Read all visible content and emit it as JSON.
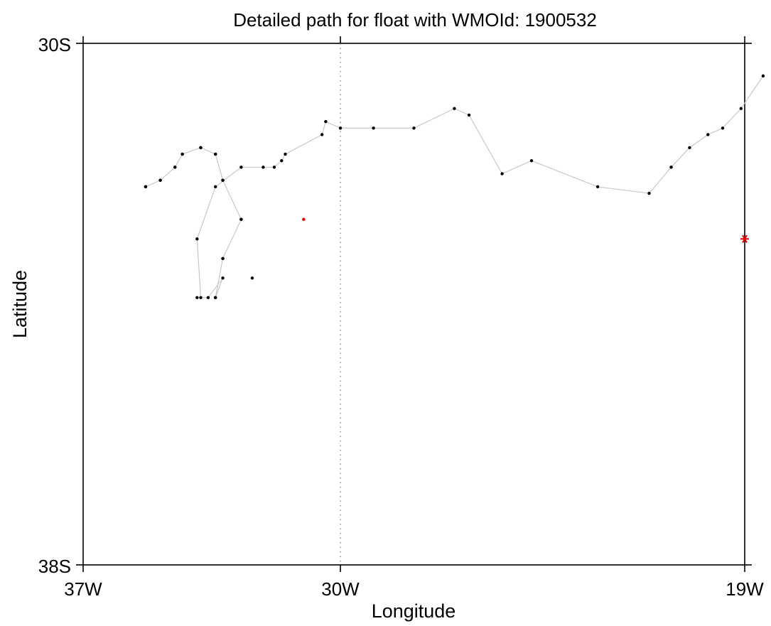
{
  "chart_data": {
    "type": "scatter",
    "title": "Detailed path for float with WMOId: 1900532",
    "xlabel": "Longitude",
    "ylabel": "Latitude",
    "xlim": [
      -37,
      -19
    ],
    "ylim": [
      -38,
      -30
    ],
    "x_tick_labels": [
      "37W",
      "30W",
      "19W"
    ],
    "y_tick_labels": [
      "30S",
      "38S"
    ],
    "reference_line": {
      "longitude": -30,
      "style": "dotted"
    },
    "grid": false,
    "colors": {
      "track": "#c8c8c8",
      "point": "#000000",
      "highlight": "#e00000",
      "frame": "#000000"
    },
    "track": {
      "name": "",
      "x": [
        -35.3,
        -34.9,
        -34.5,
        -34.3,
        -33.8,
        -33.4,
        -33.2,
        -32.7,
        -33.2,
        -33.4,
        -33.2,
        -33.6,
        -33.8,
        -33.9,
        -33.4,
        -32.7,
        -32.1,
        -31.8,
        -31.6,
        -31.5,
        -30.5,
        -30.4,
        -30.0,
        -29.1,
        -28.0,
        -26.9,
        -26.5,
        -25.6,
        -24.8,
        -23.0,
        -21.6,
        -21.0,
        -21.0,
        -20.5,
        -20.0,
        -19.6,
        -19.1,
        -18.5
      ],
      "y": [
        -32.2,
        -32.1,
        -31.9,
        -31.7,
        -31.6,
        -31.7,
        -32.1,
        -32.7,
        -33.3,
        -33.9,
        -33.6,
        -33.9,
        -33.9,
        -33.0,
        -32.2,
        -31.9,
        -31.9,
        -31.9,
        -31.8,
        -31.7,
        -31.4,
        -31.2,
        -31.3,
        -31.3,
        -31.3,
        -31.0,
        -31.1,
        -32.0,
        -31.8,
        -32.2,
        -32.3,
        -31.9,
        -31.9,
        -31.6,
        -31.4,
        -31.3,
        -31.0,
        -30.5
      ],
      "points": [
        {
          "x": -35.3,
          "y": -32.2,
          "highlight": false
        },
        {
          "x": -34.9,
          "y": -32.1,
          "highlight": false
        },
        {
          "x": -34.5,
          "y": -31.9,
          "highlight": false
        },
        {
          "x": -34.3,
          "y": -31.7,
          "highlight": false
        },
        {
          "x": -33.8,
          "y": -31.6,
          "highlight": false
        },
        {
          "x": -33.4,
          "y": -31.7,
          "highlight": false
        },
        {
          "x": -33.2,
          "y": -32.1,
          "highlight": false
        },
        {
          "x": -32.7,
          "y": -32.7,
          "highlight": false
        },
        {
          "x": -33.2,
          "y": -33.3,
          "highlight": false
        },
        {
          "x": -33.9,
          "y": -33.9,
          "highlight": false
        },
        {
          "x": -33.4,
          "y": -33.9,
          "highlight": false
        },
        {
          "x": -32.4,
          "y": -33.6,
          "highlight": false
        },
        {
          "x": -31.0,
          "y": -32.7,
          "highlight": true
        }
      ]
    },
    "end_marker": {
      "x": -19.0,
      "y": -33.0,
      "symbol": "asterisk",
      "color": "#e00000"
    }
  }
}
